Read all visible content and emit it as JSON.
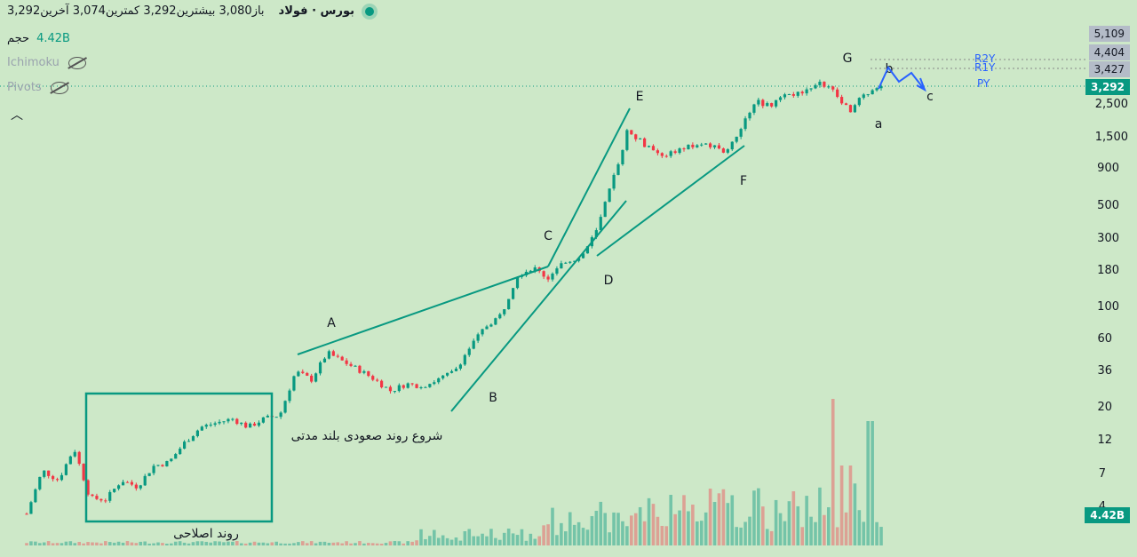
{
  "header": {
    "symbol": "بورس · فولاد",
    "ohlc_text": "باز3,080 بیشترین3,292 کمترین3,074 آخرین3,292",
    "volume_label": "حجم",
    "volume_value": "4.42B"
  },
  "indicators": [
    {
      "name": "Ichimoku",
      "icon": "eye-off-icon"
    },
    {
      "name": "Pivots",
      "icon": "eye-off-icon"
    }
  ],
  "price_tags": {
    "r2y": "5,109",
    "r1y": "4,404",
    "py": "3,427",
    "last": "3,292",
    "volume": "4.42B"
  },
  "chart_data": {
    "type": "candlestick",
    "y_scale": "log",
    "y_ticks": [
      "2,500",
      "1,500",
      "900",
      "500",
      "300",
      "180",
      "100",
      "60",
      "36",
      "20",
      "12",
      "7",
      "4"
    ],
    "pivot_labels": [
      "R2Y",
      "R1Y",
      "PY"
    ],
    "wave_labels": [
      "A",
      "B",
      "C",
      "D",
      "E",
      "F",
      "G",
      "a",
      "b",
      "c"
    ],
    "annotations": {
      "box_label": "روند اصلاحی",
      "uptrend_label": "شروع روند صعودی بلند مدتی"
    },
    "price_path": [
      3.5,
      7,
      6,
      10,
      4.5,
      4.4,
      6,
      5.4,
      7.5,
      8,
      11,
      14,
      15,
      16,
      14,
      16,
      17,
      34,
      30,
      46,
      40,
      35,
      30,
      25,
      28,
      27,
      30,
      34,
      50,
      70,
      85,
      160,
      180,
      150,
      200,
      210,
      320,
      700,
      1650,
      1300,
      1050,
      1150,
      1250,
      1300,
      1150,
      1500,
      2600,
      2400,
      2800,
      2900,
      3600,
      3000,
      2200,
      2900,
      3292
    ],
    "colors": {
      "up": "#089981",
      "down": "#f23645",
      "line": "#089981",
      "projection": "#2962ff"
    }
  }
}
